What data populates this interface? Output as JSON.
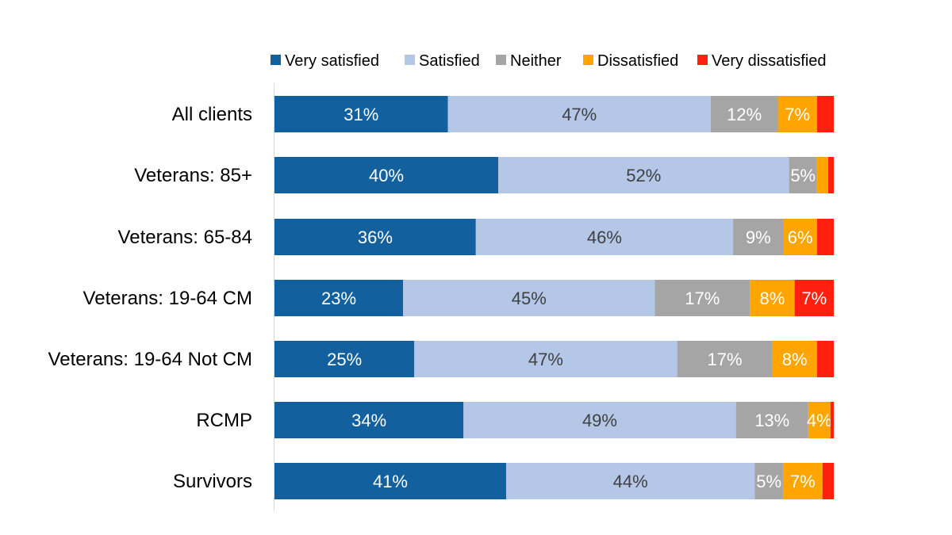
{
  "chart_data": {
    "type": "bar",
    "orientation": "horizontal",
    "stacked": true,
    "title": "",
    "xlabel": "",
    "ylabel": "",
    "xlim": [
      0,
      100
    ],
    "grid": false,
    "legend_position": "top",
    "categories": [
      "All clients",
      "Veterans: 85+",
      "Veterans: 65-84",
      "Veterans: 19-64 CM",
      "Veterans: 19-64 Not CM",
      "RCMP",
      "Survivors"
    ],
    "series": [
      {
        "name": "Very satisfied",
        "color": "#12609E",
        "label_color": "#FFFFFF",
        "values": [
          31,
          40,
          36,
          23,
          25,
          34,
          41
        ],
        "labels": [
          "31%",
          "40%",
          "36%",
          "23%",
          "25%",
          "34%",
          "41%"
        ]
      },
      {
        "name": "Satisfied",
        "color": "#B4C7E7",
        "label_color": "#404040",
        "values": [
          47,
          52,
          46,
          45,
          47,
          49,
          44
        ],
        "labels": [
          "47%",
          "52%",
          "46%",
          "45%",
          "47%",
          "49%",
          "44%"
        ]
      },
      {
        "name": "Neither",
        "color": "#A5A5A5",
        "label_color": "#FFFFFF",
        "values": [
          12,
          5,
          9,
          17,
          17,
          13,
          5
        ],
        "labels": [
          "12%",
          "5%",
          "9%",
          "17%",
          "17%",
          "13%",
          "5%"
        ]
      },
      {
        "name": "Dissatisfied",
        "color": "#FFA500",
        "label_color": "#FFFFFF",
        "values": [
          7,
          2,
          6,
          8,
          8,
          4,
          7
        ],
        "labels": [
          "7%",
          "",
          "6%",
          "8%",
          "8%",
          "4%",
          "7%"
        ]
      },
      {
        "name": "Very dissatisfied",
        "color": "#FF2010",
        "label_color": "#FFFFFF",
        "values": [
          3,
          1,
          3,
          7,
          3,
          0.6,
          2
        ],
        "labels": [
          "",
          "",
          "",
          "7%",
          "",
          "",
          ""
        ]
      }
    ]
  }
}
